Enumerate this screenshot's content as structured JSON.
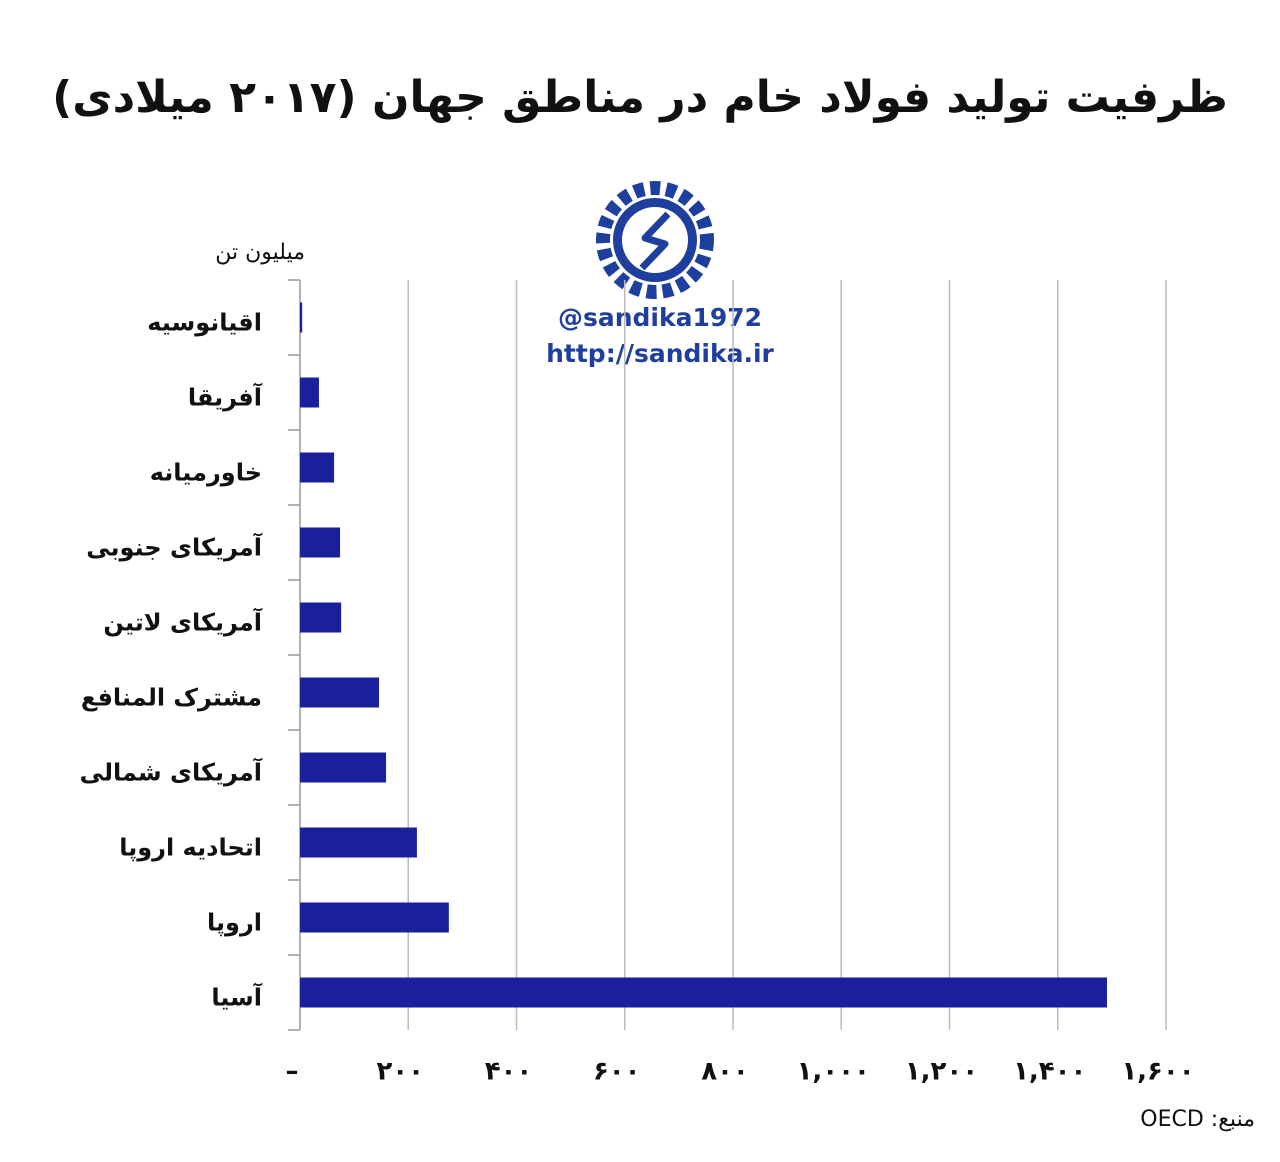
{
  "chart_data": {
    "type": "bar",
    "orientation": "horizontal",
    "title": "ظرفیت تولید فولاد خام در مناطق جهان (۲۰۱۷ میلادی)",
    "unit_label": "میلیون تن",
    "source": "منبع: OECD",
    "watermark": [
      "@sandika1972",
      "http://sandika.ir"
    ],
    "categories": [
      "اقیانوسیه",
      "آفریقا",
      "خاورمیانه",
      "آمریکای جنوبی",
      "آمریکای لاتین",
      "مشترک المنافع",
      "آمریکای شمالی",
      "اتحادیه اروپا",
      "اروپا",
      "آسیا"
    ],
    "values": [
      4,
      35,
      63,
      74,
      76,
      146,
      159,
      216,
      275,
      1491
    ],
    "color": "#1a1f9c",
    "xlim": [
      0,
      1600
    ],
    "xticks": [
      {
        "value": 0,
        "label": "–"
      },
      {
        "value": 200,
        "label": "۲۰۰"
      },
      {
        "value": 400,
        "label": "۴۰۰"
      },
      {
        "value": 600,
        "label": "۶۰۰"
      },
      {
        "value": 800,
        "label": "۸۰۰"
      },
      {
        "value": 1000,
        "label": "۱,۰۰۰"
      },
      {
        "value": 1200,
        "label": "۱,۲۰۰"
      },
      {
        "value": 1400,
        "label": "۱,۴۰۰"
      },
      {
        "value": 1600,
        "label": "۱,۶۰۰"
      }
    ],
    "grid": true
  }
}
